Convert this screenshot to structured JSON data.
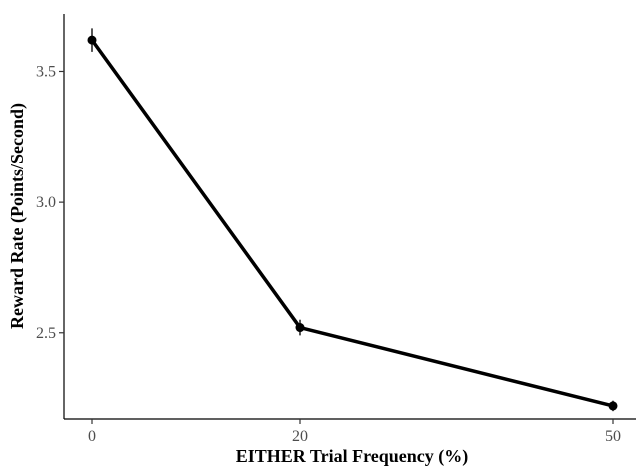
{
  "chart_data": {
    "type": "line",
    "title": "",
    "xlabel": "EITHER Trial Frequency (%)",
    "ylabel": "Reward Rate (Points/Second)",
    "x_ticks": [
      "0",
      "20",
      "50"
    ],
    "y_ticks": [
      "2.5",
      "3.0",
      "3.5"
    ],
    "ylim": [
      2.17,
      3.72
    ],
    "grid": false,
    "legend": "none",
    "series": [
      {
        "points": [
          {
            "x_label": "0",
            "y": 3.62,
            "err": 0.045
          },
          {
            "x_label": "20",
            "y": 2.52,
            "err": 0.03
          },
          {
            "x_label": "50",
            "y": 2.22,
            "err": 0.02
          }
        ],
        "color": "#000000"
      }
    ]
  }
}
